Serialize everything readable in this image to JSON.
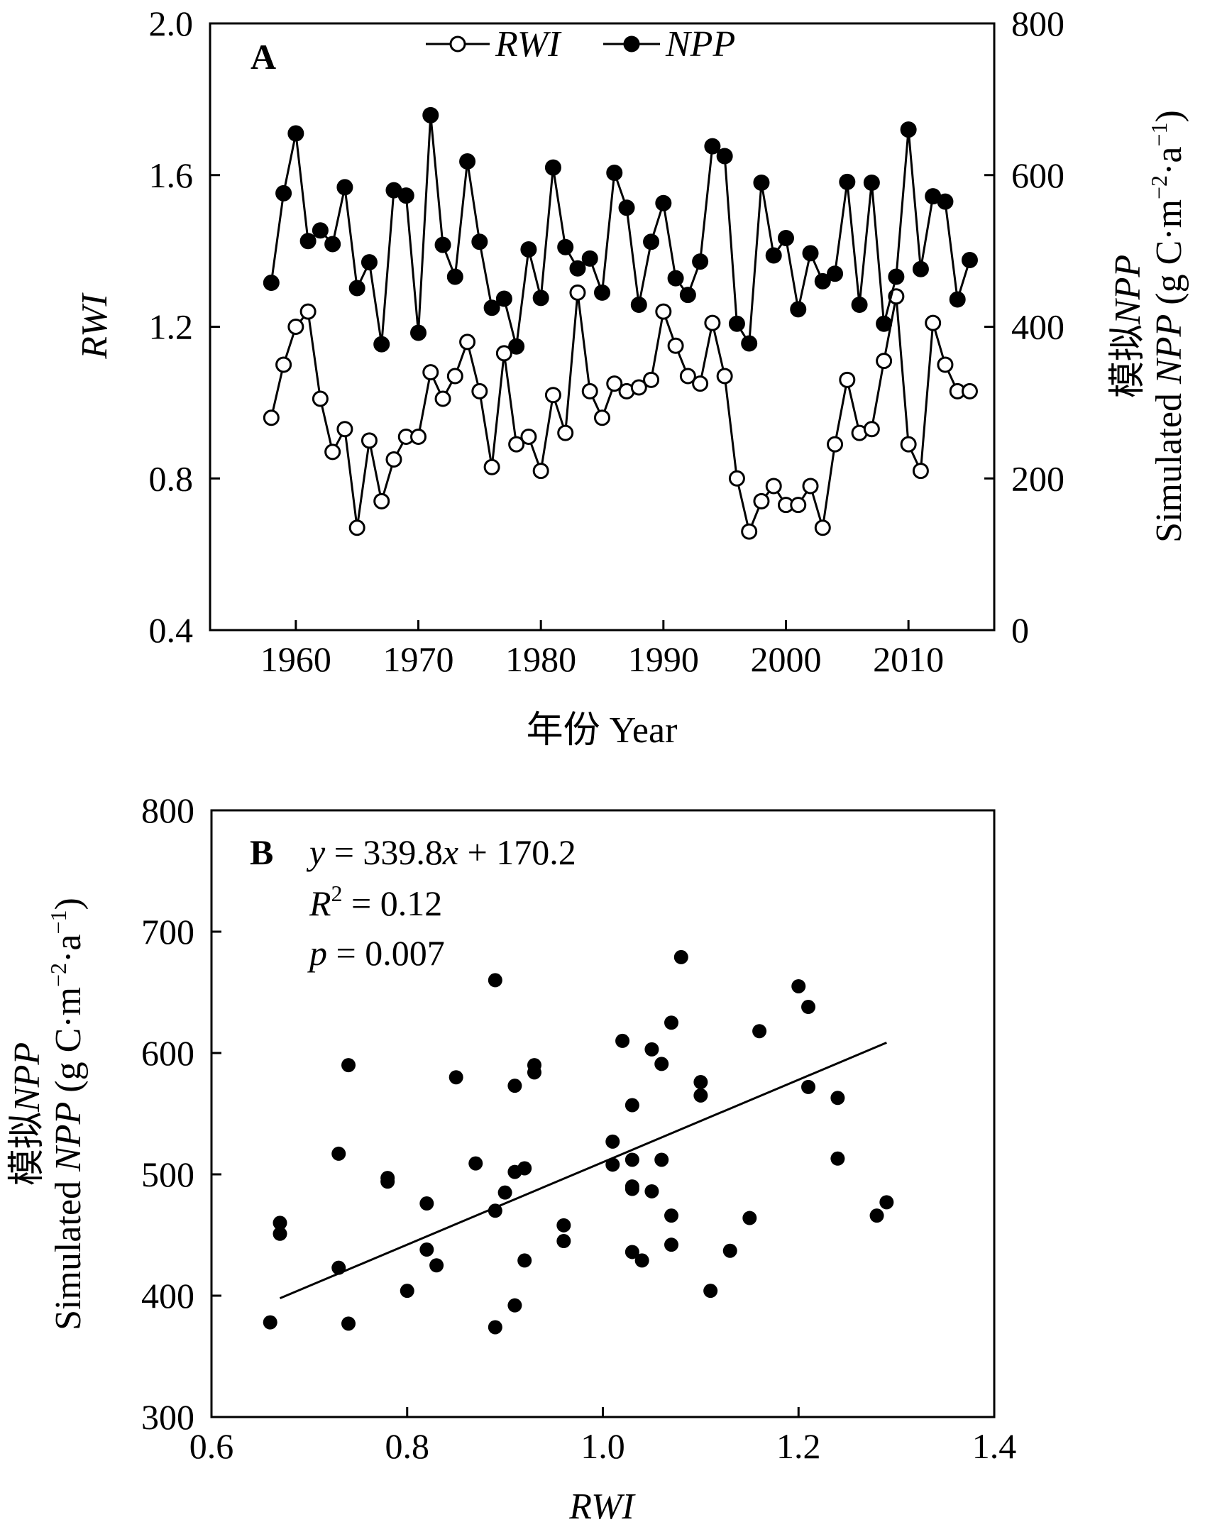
{
  "chart_data": [
    {
      "type": "line",
      "panel_label": "A",
      "x": [
        1958,
        1959,
        1960,
        1961,
        1962,
        1963,
        1964,
        1965,
        1966,
        1967,
        1968,
        1969,
        1970,
        1971,
        1972,
        1973,
        1974,
        1975,
        1976,
        1977,
        1978,
        1979,
        1980,
        1981,
        1982,
        1983,
        1984,
        1985,
        1986,
        1987,
        1988,
        1989,
        1990,
        1991,
        1992,
        1993,
        1994,
        1995,
        1996,
        1997,
        1998,
        1999,
        2000,
        2001,
        2002,
        2003,
        2004,
        2005,
        2006,
        2007,
        2008,
        2009,
        2010,
        2011,
        2012,
        2013,
        2014,
        2015
      ],
      "series": [
        {
          "name": "RWI",
          "axis": "left",
          "marker": "open-circle",
          "values": [
            0.96,
            1.1,
            1.2,
            1.24,
            1.01,
            0.87,
            0.93,
            0.67,
            0.9,
            0.74,
            0.85,
            0.91,
            0.91,
            1.08,
            1.01,
            1.07,
            1.16,
            1.03,
            0.83,
            1.13,
            0.89,
            0.91,
            0.82,
            1.02,
            0.92,
            1.29,
            1.03,
            0.96,
            1.05,
            1.03,
            1.04,
            1.06,
            1.24,
            1.15,
            1.07,
            1.05,
            1.21,
            1.07,
            0.8,
            0.66,
            0.74,
            0.78,
            0.73,
            0.73,
            0.78,
            0.67,
            0.89,
            1.06,
            0.92,
            0.93,
            1.11,
            1.28,
            0.89,
            0.82,
            1.21,
            1.1,
            1.03,
            1.03
          ]
        },
        {
          "name": "NPP",
          "axis": "right",
          "marker": "filled-circle",
          "values": [
            458,
            576,
            655,
            513,
            527,
            509,
            584,
            451,
            485,
            377,
            580,
            573,
            392,
            679,
            508,
            466,
            618,
            512,
            425,
            437,
            374,
            502,
            438,
            610,
            505,
            477,
            490,
            445,
            603,
            557,
            429,
            512,
            563,
            464,
            442,
            486,
            638,
            625,
            404,
            378,
            590,
            494,
            517,
            423,
            497,
            460,
            470,
            591,
            429,
            590,
            404,
            466,
            660,
            476,
            572,
            565,
            436,
            488
          ]
        }
      ],
      "legend_labels": [
        "RWI",
        "NPP"
      ],
      "legend_position": "top-center",
      "xlabel": "年份 Year",
      "ylabel_left": "RWI",
      "ylabel_right": "模拟NPP",
      "ylabel_right_parts": {
        "line1": "模拟",
        "line1_italic": "NPP",
        "line2_plain1": "Simulated ",
        "line2_italic": "NPP",
        "line2_plain2": " (g C·m",
        "sup1": "−2",
        "mid": "·a",
        "sup2": "−1",
        "end": ")"
      },
      "xlim": [
        1953,
        2017
      ],
      "ylim_left": [
        0.4,
        2.0
      ],
      "ylim_right": [
        0,
        800
      ],
      "x_ticks": [
        "1960",
        "1970",
        "1980",
        "1990",
        "2000",
        "2010"
      ],
      "y_ticks_left": [
        "0.4",
        "0.8",
        "1.2",
        "1.6",
        "2.0"
      ],
      "y_ticks_right": [
        "0",
        "200",
        "400",
        "600",
        "800"
      ],
      "grid": false
    },
    {
      "type": "scatter",
      "panel_label": "B",
      "points_x": [
        0.96,
        1.1,
        1.2,
        1.24,
        1.01,
        0.87,
        0.93,
        0.67,
        0.9,
        0.74,
        0.85,
        0.91,
        0.91,
        1.08,
        1.01,
        1.07,
        1.16,
        1.03,
        0.83,
        1.13,
        0.89,
        0.91,
        0.82,
        1.02,
        0.92,
        1.29,
        1.03,
        0.96,
        1.05,
        1.03,
        1.04,
        1.06,
        1.24,
        1.15,
        1.07,
        1.05,
        1.21,
        1.07,
        0.8,
        0.66,
        0.74,
        0.78,
        0.73,
        0.73,
        0.78,
        0.67,
        0.89,
        1.06,
        0.92,
        0.93,
        1.11,
        1.28,
        0.89,
        0.82,
        1.21,
        1.1,
        1.03,
        1.03
      ],
      "points_y": [
        458,
        576,
        655,
        513,
        527,
        509,
        584,
        451,
        485,
        377,
        580,
        573,
        392,
        679,
        508,
        466,
        618,
        512,
        425,
        437,
        374,
        502,
        438,
        610,
        505,
        477,
        490,
        445,
        603,
        557,
        429,
        512,
        563,
        464,
        442,
        486,
        638,
        625,
        404,
        378,
        590,
        494,
        517,
        423,
        497,
        460,
        470,
        591,
        429,
        590,
        404,
        466,
        660,
        476,
        572,
        565,
        436,
        488
      ],
      "fit": {
        "slope": 339.8,
        "intercept": 170.2,
        "x_range": [
          0.67,
          1.29
        ]
      },
      "annotations": {
        "eq_var": "y",
        "eq_mid": " = 339.8",
        "eq_x": "x",
        "eq_end": " + 170.2",
        "r2_sym": "R",
        "r2_sup": "2",
        "r2_val": " = 0.12",
        "p_sym": "p",
        "p_val": " = 0.007"
      },
      "xlabel": "RWI",
      "ylabel": "模拟NPP",
      "ylabel_parts": {
        "line1": "模拟",
        "line1_italic": "NPP",
        "line2_plain1": "Simulated ",
        "line2_italic": "NPP",
        "line2_plain2": " (g C·m",
        "sup1": "−2",
        "mid": "·a",
        "sup2": "−1",
        "end": ")"
      },
      "xlim": [
        0.6,
        1.4
      ],
      "ylim": [
        300,
        800
      ],
      "x_ticks": [
        "0.6",
        "0.8",
        "1.0",
        "1.2",
        "1.4"
      ],
      "y_ticks": [
        "300",
        "400",
        "500",
        "600",
        "700",
        "800"
      ],
      "grid": false
    }
  ]
}
